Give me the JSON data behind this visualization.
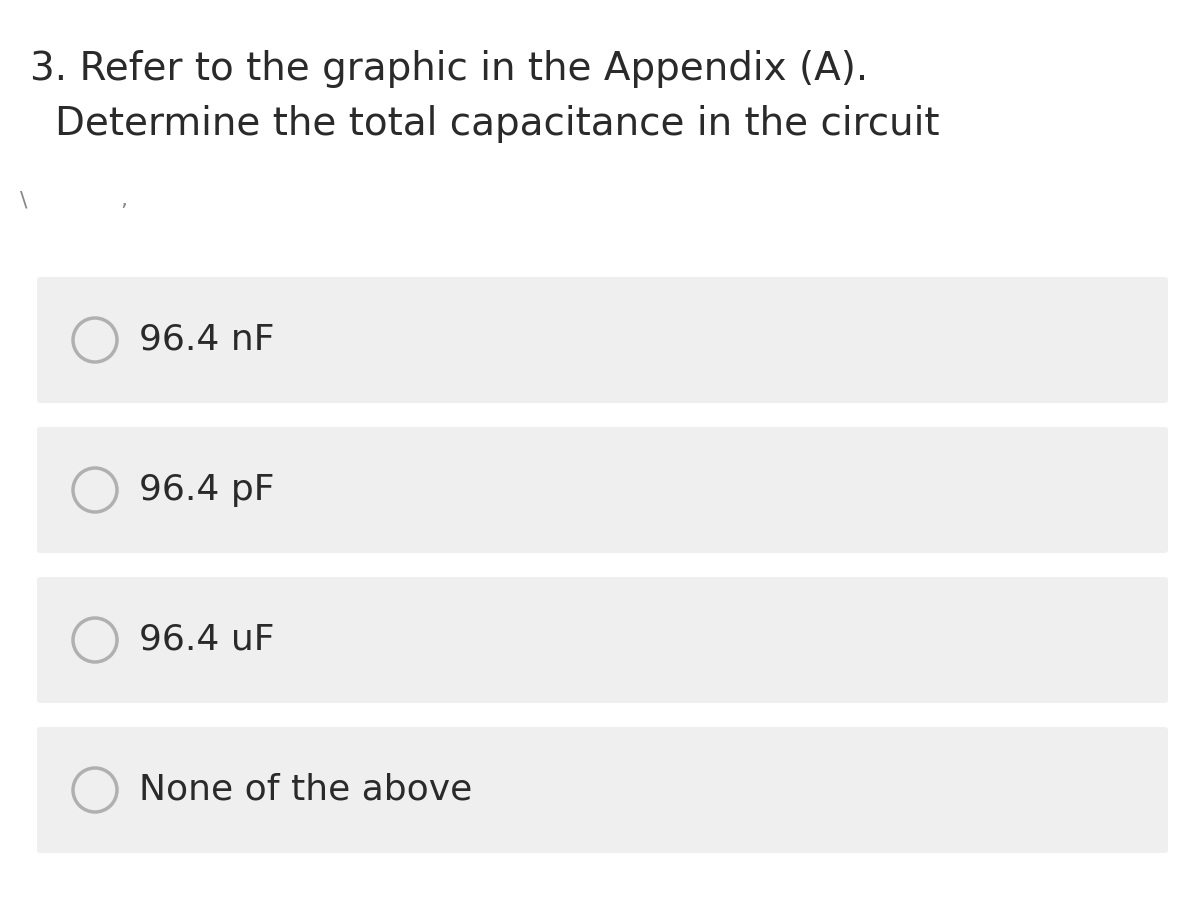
{
  "title_line1": "3. Refer to the graphic in the Appendix (A).",
  "title_line2": "Determine the total capacitance in the circuit",
  "options": [
    "96.4 nF",
    "96.4 pF",
    "96.4 uF",
    "None of the above"
  ],
  "bg_color": "#ffffff",
  "option_box_color": "#efefef",
  "option_text_color": "#2a2a2a",
  "title_text_color": "#2a2a2a",
  "circle_edge_color": "#b0b0b0",
  "circle_face_color": "#efefef",
  "font_size_title": 28,
  "font_size_option": 26,
  "tick_char1": "\\",
  "tick_char2": ",",
  "tick_color": "#888888",
  "tick_fontsize": 16
}
